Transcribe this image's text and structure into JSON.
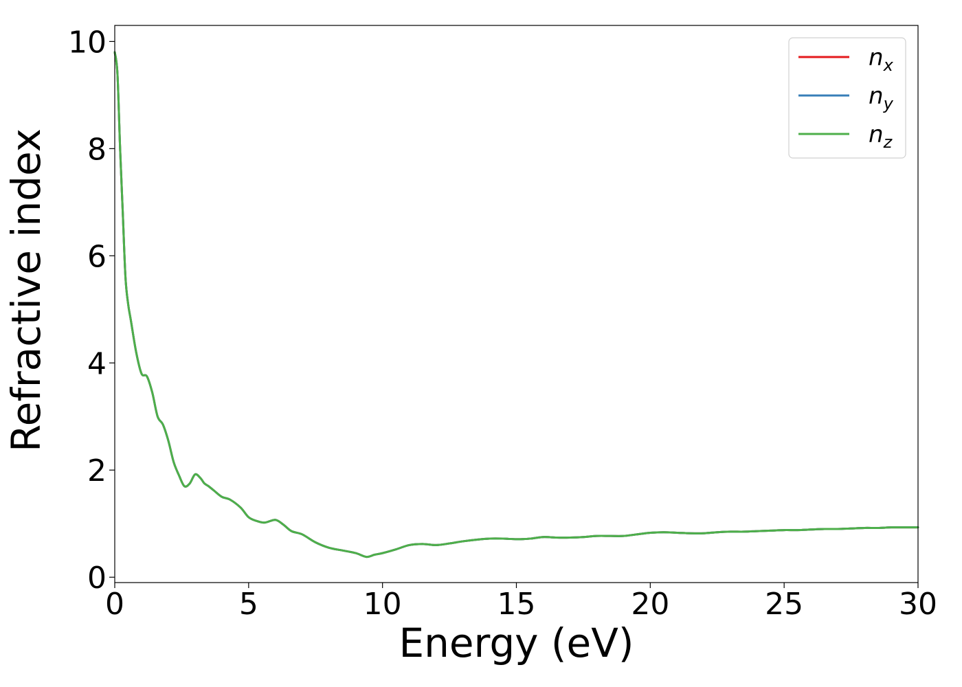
{
  "chart_data": {
    "type": "line",
    "title": "",
    "xlabel": "Energy (eV)",
    "ylabel": "Refractive index",
    "xlim": [
      0,
      30
    ],
    "ylim": [
      -0.1,
      10.3
    ],
    "xticks": [
      0,
      5,
      10,
      15,
      20,
      25,
      30
    ],
    "xtick_labels": [
      "0",
      "5",
      "10",
      "15",
      "20",
      "25",
      "30"
    ],
    "yticks": [
      0,
      2,
      4,
      6,
      8,
      10
    ],
    "ytick_labels": [
      "0",
      "2",
      "4",
      "6",
      "8",
      "10"
    ],
    "grid": false,
    "legend_position": "top-right",
    "x": [
      0.0,
      0.1,
      0.2,
      0.3,
      0.4,
      0.5,
      0.6,
      0.8,
      1.0,
      1.2,
      1.4,
      1.6,
      1.8,
      2.0,
      2.2,
      2.4,
      2.6,
      2.8,
      3.0,
      3.2,
      3.35,
      3.5,
      3.7,
      4.0,
      4.3,
      4.7,
      5.0,
      5.3,
      5.6,
      6.0,
      6.3,
      6.6,
      7.0,
      7.5,
      8.0,
      8.5,
      9.0,
      9.4,
      9.7,
      10.0,
      10.5,
      11.0,
      11.5,
      12.0,
      12.5,
      13.0,
      13.5,
      14.0,
      14.5,
      15.0,
      15.5,
      16.0,
      16.5,
      17.0,
      17.5,
      18.0,
      18.5,
      19.0,
      19.5,
      20.0,
      20.5,
      21.0,
      21.5,
      22.0,
      22.5,
      23.0,
      23.5,
      24.0,
      24.5,
      25.0,
      25.5,
      26.0,
      26.5,
      27.0,
      27.5,
      28.0,
      28.5,
      29.0,
      29.5,
      30.0
    ],
    "series": [
      {
        "name": "n_x",
        "label_main": "n",
        "label_sub": "x",
        "color": "#e41a1c",
        "values": [
          9.8,
          9.4,
          8.0,
          6.8,
          5.6,
          5.1,
          4.8,
          4.2,
          3.8,
          3.75,
          3.45,
          3.0,
          2.85,
          2.55,
          2.15,
          1.9,
          1.7,
          1.75,
          1.92,
          1.85,
          1.75,
          1.7,
          1.62,
          1.5,
          1.45,
          1.3,
          1.12,
          1.05,
          1.02,
          1.07,
          0.98,
          0.86,
          0.8,
          0.65,
          0.55,
          0.5,
          0.45,
          0.38,
          0.42,
          0.45,
          0.52,
          0.6,
          0.62,
          0.6,
          0.63,
          0.67,
          0.7,
          0.72,
          0.72,
          0.71,
          0.72,
          0.75,
          0.74,
          0.74,
          0.75,
          0.77,
          0.77,
          0.77,
          0.8,
          0.83,
          0.84,
          0.83,
          0.82,
          0.82,
          0.84,
          0.85,
          0.85,
          0.86,
          0.87,
          0.88,
          0.88,
          0.89,
          0.9,
          0.9,
          0.91,
          0.92,
          0.92,
          0.93,
          0.93,
          0.93
        ]
      },
      {
        "name": "n_y",
        "label_main": "n",
        "label_sub": "y",
        "color": "#377eb8",
        "values": [
          9.8,
          9.4,
          8.0,
          6.8,
          5.6,
          5.1,
          4.8,
          4.2,
          3.8,
          3.75,
          3.45,
          3.0,
          2.85,
          2.55,
          2.15,
          1.9,
          1.7,
          1.75,
          1.92,
          1.85,
          1.75,
          1.7,
          1.62,
          1.5,
          1.45,
          1.3,
          1.12,
          1.05,
          1.02,
          1.07,
          0.98,
          0.86,
          0.8,
          0.65,
          0.55,
          0.5,
          0.45,
          0.38,
          0.42,
          0.45,
          0.52,
          0.6,
          0.62,
          0.6,
          0.63,
          0.67,
          0.7,
          0.72,
          0.72,
          0.71,
          0.72,
          0.75,
          0.74,
          0.74,
          0.75,
          0.77,
          0.77,
          0.77,
          0.8,
          0.83,
          0.84,
          0.83,
          0.82,
          0.82,
          0.84,
          0.85,
          0.85,
          0.86,
          0.87,
          0.88,
          0.88,
          0.89,
          0.9,
          0.9,
          0.91,
          0.92,
          0.92,
          0.93,
          0.93,
          0.93
        ]
      },
      {
        "name": "n_z",
        "label_main": "n",
        "label_sub": "z",
        "color": "#4daf4a",
        "values": [
          9.8,
          9.4,
          8.0,
          6.8,
          5.6,
          5.1,
          4.8,
          4.2,
          3.8,
          3.75,
          3.45,
          3.0,
          2.85,
          2.55,
          2.15,
          1.9,
          1.7,
          1.75,
          1.92,
          1.85,
          1.75,
          1.7,
          1.62,
          1.5,
          1.45,
          1.3,
          1.12,
          1.05,
          1.02,
          1.07,
          0.98,
          0.86,
          0.8,
          0.65,
          0.55,
          0.5,
          0.45,
          0.38,
          0.42,
          0.45,
          0.52,
          0.6,
          0.62,
          0.6,
          0.63,
          0.67,
          0.7,
          0.72,
          0.72,
          0.71,
          0.72,
          0.75,
          0.74,
          0.74,
          0.75,
          0.77,
          0.77,
          0.77,
          0.8,
          0.83,
          0.84,
          0.83,
          0.82,
          0.82,
          0.84,
          0.85,
          0.85,
          0.86,
          0.87,
          0.88,
          0.88,
          0.89,
          0.9,
          0.9,
          0.91,
          0.92,
          0.92,
          0.93,
          0.93,
          0.93
        ]
      }
    ]
  }
}
